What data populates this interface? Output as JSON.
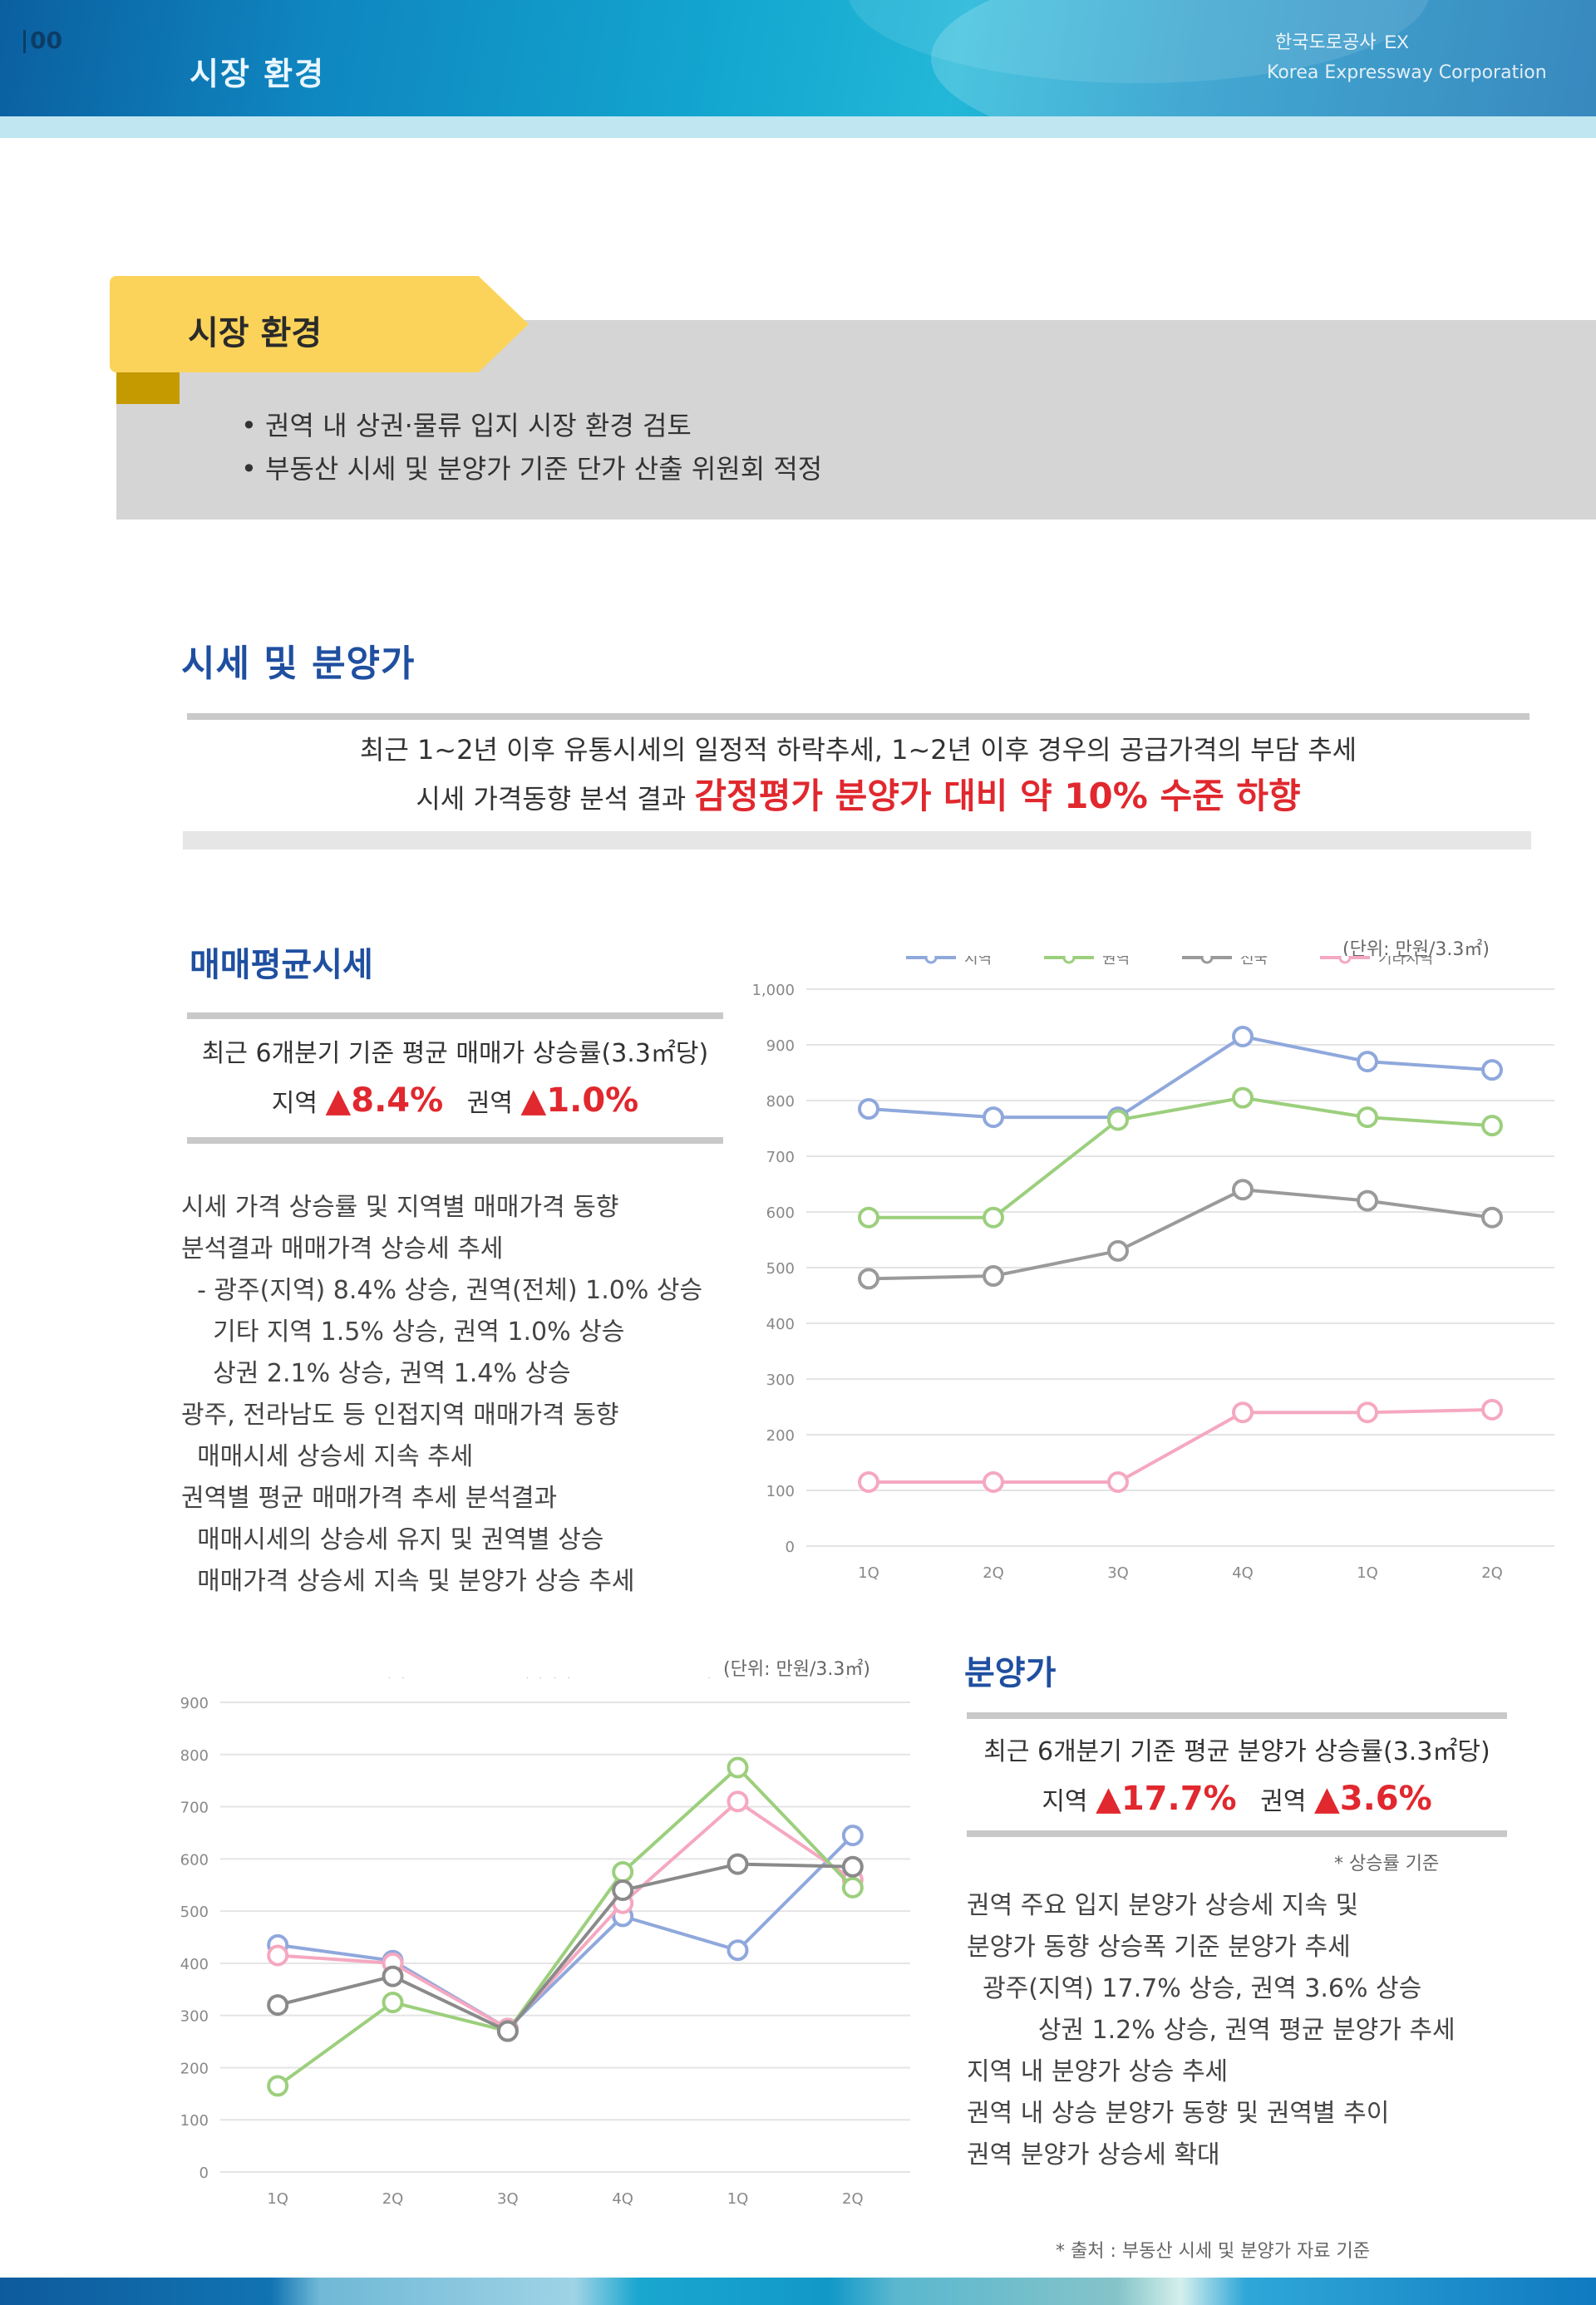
{
  "header": {
    "page_number": "00",
    "section": "시장 환경",
    "logo_main": "한국도로공사",
    "logo_sub": "EX",
    "logo_en": "Korea Expressway Corporation"
  },
  "ribbon": {
    "title": "시장 환경",
    "bullets": [
      "• 권역 내 상권·물류 입지 시장 환경 검토",
      "• 부동산 시세 및 분양가 기준 단가 산출 위원회 적정"
    ]
  },
  "section1": {
    "heading": "시세 및 분양가",
    "summary_line1": "최근 1~2년 이후 유통시세의 일정적 하락추세, 1~2년 이후 경우의 공급가격의 부담 추세",
    "summary_line2": "시세 가격동향 분석 결과 ",
    "summary_highlight": "감정평가 분양가 대비 약 10% 수준 하향"
  },
  "chart1": {
    "heading": "매매평균시세",
    "unit": "(단위: 만원/3.3㎡)",
    "box_line1": "최근 6개분기 기준 평균 매매가 상승률(3.3㎡당)",
    "box_label_a": "지역",
    "box_val_a": "8.4%",
    "box_label_b": "권역",
    "box_val_b": "1.0%",
    "paragraph": "시세 가격 상승률 및 지역별 매매가격 동향\n분석결과 매매가격 상승세 추세\n  - 광주(지역) 8.4% 상승, 권역(전체) 1.0% 상승\n    기타 지역 1.5% 상승, 권역 1.0% 상승\n    상권 2.1% 상승, 권역 1.4% 상승\n광주, 전라남도 등 인접지역 매매가격 동향\n  매매시세 상승세 지속 추세\n권역별 평균 매매가격 추세 분석결과\n  매매시세의 상승세 유지 및 권역별 상승\n  매매가격 상승세 지속 및 분양가 상승 추세",
    "chart_data": {
      "type": "line",
      "categories": [
        "1Q",
        "2Q",
        "3Q",
        "4Q",
        "1Q",
        "2Q"
      ],
      "ylim": [
        0,
        1000
      ],
      "yticks": [
        "0",
        "100",
        "200",
        "300",
        "400",
        "500",
        "600",
        "700",
        "800",
        "900",
        "1,000"
      ],
      "series": [
        {
          "name": "지역",
          "color": "#8fa8dc",
          "values": [
            785,
            770,
            770,
            915,
            870,
            855
          ]
        },
        {
          "name": "권역",
          "color": "#9ccf7d",
          "values": [
            590,
            590,
            765,
            805,
            770,
            755
          ]
        },
        {
          "name": "전국",
          "color": "#9a9a9a",
          "values": [
            480,
            485,
            530,
            640,
            620,
            590
          ]
        },
        {
          "name": "기타지역",
          "color": "#f5a8c0",
          "values": [
            115,
            115,
            115,
            240,
            240,
            245
          ]
        }
      ]
    }
  },
  "chart2": {
    "heading": "분양가",
    "unit": "(단위: 만원/3.3㎡)",
    "box_line1": "최근 6개분기 기준 평균 분양가 상승률(3.3㎡당)",
    "box_label_a": "지역",
    "box_val_a": "17.7%",
    "box_label_b": "권역",
    "box_val_b": "3.6%",
    "footnote": "* 상승률 기준",
    "paragraph": "권역 주요 입지 분양가 상승세 지속 및\n분양가 동향 상승폭 기준 분양가 추세\n  광주(지역) 17.7% 상승, 권역 3.6% 상승\n         상권 1.2% 상승, 권역 평균 분양가 추세\n지역 내 분양가 상승 추세\n권역 내 상승 분양가 동향 및 권역별 추이\n권역 분양가 상승세 확대",
    "chart_data": {
      "type": "line",
      "categories": [
        "1Q",
        "2Q",
        "3Q",
        "4Q",
        "1Q",
        "2Q"
      ],
      "ylim": [
        0,
        900
      ],
      "yticks": [
        "0",
        "100",
        "200",
        "300",
        "400",
        "500",
        "600",
        "700",
        "800",
        "900"
      ],
      "series": [
        {
          "name": "지역",
          "color": "#8fa8dc",
          "values": [
            435,
            405,
            275,
            490,
            425,
            645
          ]
        },
        {
          "name": "기타지역",
          "color": "#f5a8c0",
          "values": [
            415,
            400,
            275,
            515,
            710,
            560
          ]
        },
        {
          "name": "권역",
          "color": "#9ccf7d",
          "values": [
            165,
            325,
            270,
            575,
            775,
            545
          ]
        },
        {
          "name": "전국",
          "color": "#8a8a8a",
          "values": [
            320,
            375,
            270,
            540,
            590,
            585
          ]
        }
      ]
    }
  },
  "source_note": "* 출처 : 부동산 시세 및 분양가 자료 기준"
}
